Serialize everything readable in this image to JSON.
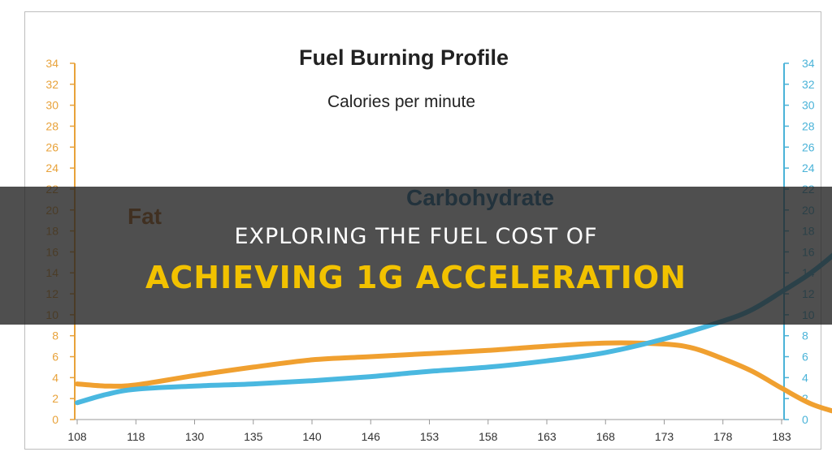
{
  "chart_data": {
    "type": "line",
    "title": "Fuel Burning Profile",
    "subtitle": "Calories per minute",
    "x_ticks": [
      "108",
      "118",
      "130",
      "135",
      "140",
      "146",
      "153",
      "158",
      "163",
      "168",
      "173",
      "178",
      "183"
    ],
    "y_left": {
      "ticks": [
        0,
        2,
        4,
        6,
        8,
        10,
        12,
        14,
        16,
        18,
        20,
        22,
        24,
        26,
        28,
        30,
        32,
        34
      ],
      "range": [
        0,
        34
      ],
      "color": "#e8a23a"
    },
    "y_right": {
      "ticks": [
        0,
        2,
        4,
        6,
        8,
        10,
        12,
        14,
        16,
        18,
        20,
        22,
        24,
        26,
        28,
        30,
        32,
        34
      ],
      "range": [
        0,
        34
      ],
      "color": "#4ab3d8"
    },
    "series": [
      {
        "name": "Fat",
        "color": "#f0a030",
        "points": [
          [
            0,
            3.4
          ],
          [
            0.5,
            3.2
          ],
          [
            1,
            3.3
          ],
          [
            2,
            4.2
          ],
          [
            3,
            5.0
          ],
          [
            4,
            5.7
          ],
          [
            5,
            6.0
          ],
          [
            6,
            6.3
          ],
          [
            7,
            6.6
          ],
          [
            8,
            7.0
          ],
          [
            9,
            7.3
          ],
          [
            10,
            7.2
          ],
          [
            10.5,
            6.8
          ],
          [
            11,
            5.8
          ],
          [
            11.5,
            4.6
          ],
          [
            12,
            3.0
          ],
          [
            12.5,
            1.5
          ],
          [
            13,
            0.6
          ],
          [
            13.4,
            0.0
          ]
        ]
      },
      {
        "name": "Carbohydrate",
        "color": "#4ab8e0",
        "points": [
          [
            0,
            1.6
          ],
          [
            0.5,
            2.4
          ],
          [
            1,
            2.9
          ],
          [
            2,
            3.2
          ],
          [
            3,
            3.4
          ],
          [
            4,
            3.7
          ],
          [
            5,
            4.1
          ],
          [
            6,
            4.6
          ],
          [
            7,
            5.0
          ],
          [
            8,
            5.6
          ],
          [
            9,
            6.4
          ],
          [
            10,
            7.7
          ],
          [
            11,
            9.4
          ],
          [
            11.5,
            10.5
          ],
          [
            12,
            12.2
          ],
          [
            12.5,
            14.0
          ],
          [
            13,
            16.3
          ],
          [
            13.5,
            19.0
          ],
          [
            14,
            21.8
          ]
        ]
      }
    ],
    "labels": [
      {
        "text": "Fat",
        "color": "#b5651d"
      },
      {
        "text": "Carbohydrate",
        "color": "#1f6fa0"
      }
    ],
    "grid": false,
    "legend": "none"
  },
  "banner": {
    "line1": "EXPLORING THE FUEL COST OF",
    "line2": "ACHIEVING 1G ACCELERATION"
  }
}
